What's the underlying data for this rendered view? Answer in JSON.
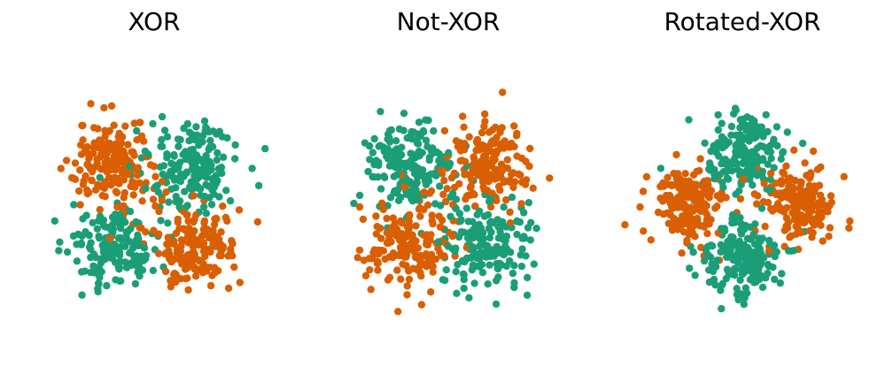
{
  "colors": {
    "class_a": "#1b9e77",
    "class_b": "#d95f02"
  },
  "chart_data": [
    {
      "type": "scatter",
      "title": "XOR",
      "xlabel": "",
      "ylabel": "",
      "grid": false,
      "axes_visible": false,
      "xlim": [
        -2.3,
        2.3
      ],
      "ylim": [
        -2.3,
        2.3
      ],
      "approx_points_per_cluster": 175,
      "series": [
        {
          "color": "#1b9e77",
          "clusters": [
            {
              "center": [
                0.8,
                0.8
              ],
              "spread": 0.45
            },
            {
              "center": [
                -0.8,
                -0.8
              ],
              "spread": 0.45
            }
          ]
        },
        {
          "color": "#d95f02",
          "clusters": [
            {
              "center": [
                -0.8,
                0.8
              ],
              "spread": 0.45
            },
            {
              "center": [
                0.8,
                -0.8
              ],
              "spread": 0.45
            }
          ]
        }
      ]
    },
    {
      "type": "scatter",
      "title": "Not-XOR",
      "xlabel": "",
      "ylabel": "",
      "grid": false,
      "axes_visible": false,
      "xlim": [
        -2.3,
        2.3
      ],
      "ylim": [
        -2.3,
        2.3
      ],
      "approx_points_per_cluster": 175,
      "series": [
        {
          "color": "#1b9e77",
          "clusters": [
            {
              "center": [
                -0.8,
                0.8
              ],
              "spread": 0.45
            },
            {
              "center": [
                0.8,
                -0.8
              ],
              "spread": 0.45
            }
          ]
        },
        {
          "color": "#d95f02",
          "clusters": [
            {
              "center": [
                0.8,
                0.8
              ],
              "spread": 0.45
            },
            {
              "center": [
                -0.8,
                -0.8
              ],
              "spread": 0.45
            }
          ]
        }
      ]
    },
    {
      "type": "scatter",
      "title": "Rotated-XOR",
      "xlabel": "",
      "ylabel": "",
      "grid": false,
      "axes_visible": false,
      "xlim": [
        -2.3,
        2.3
      ],
      "ylim": [
        -2.3,
        2.3
      ],
      "approx_points_per_cluster": 175,
      "series": [
        {
          "color": "#1b9e77",
          "clusters": [
            {
              "center": [
                0.0,
                1.1
              ],
              "spread": 0.4
            },
            {
              "center": [
                0.0,
                -1.1
              ],
              "spread": 0.4
            }
          ]
        },
        {
          "color": "#d95f02",
          "clusters": [
            {
              "center": [
                -1.1,
                0.0
              ],
              "spread": 0.4
            },
            {
              "center": [
                1.1,
                0.0
              ],
              "spread": 0.4
            }
          ]
        }
      ]
    }
  ]
}
